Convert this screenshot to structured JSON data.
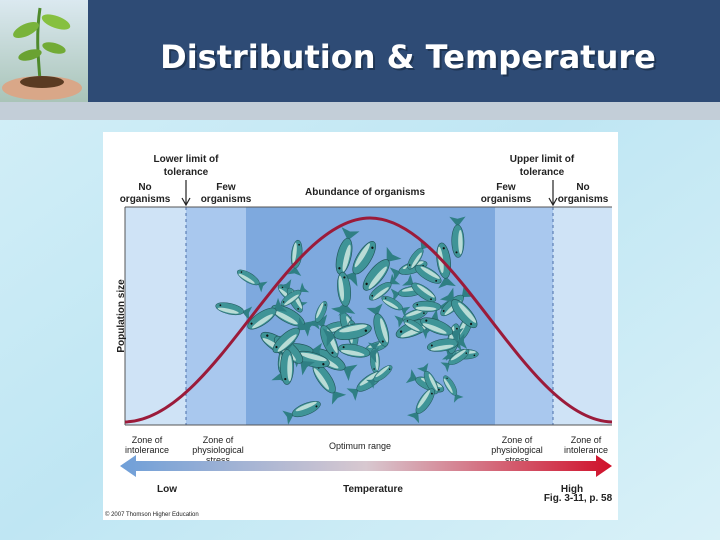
{
  "header": {
    "title": "Distribution & Temperature"
  },
  "figure": {
    "y_axis_label": "Population size",
    "top_labels": {
      "lower_limit": [
        "Lower limit of",
        "tolerance"
      ],
      "upper_limit": [
        "Upper limit of",
        "tolerance"
      ],
      "no_left": [
        "No",
        "organisms"
      ],
      "few_left": [
        "Few",
        "organisms"
      ],
      "abundance": "Abundance of organisms",
      "few_right": [
        "Few",
        "organisms"
      ],
      "no_right": [
        "No",
        "organisms"
      ]
    },
    "zones": [
      [
        "Zone of",
        "intolerance"
      ],
      [
        "Zone of",
        "physiological",
        "stress"
      ],
      [
        "Optimum range"
      ],
      [
        "Zone of",
        "physiological",
        "stress"
      ],
      [
        "Zone of",
        "intolerance"
      ]
    ],
    "axis": {
      "low": "Low",
      "label": "Temperature",
      "high": "High"
    },
    "source": "Fig. 3-11, p. 58",
    "copyright": "© 2007 Thomson Higher Education"
  }
}
